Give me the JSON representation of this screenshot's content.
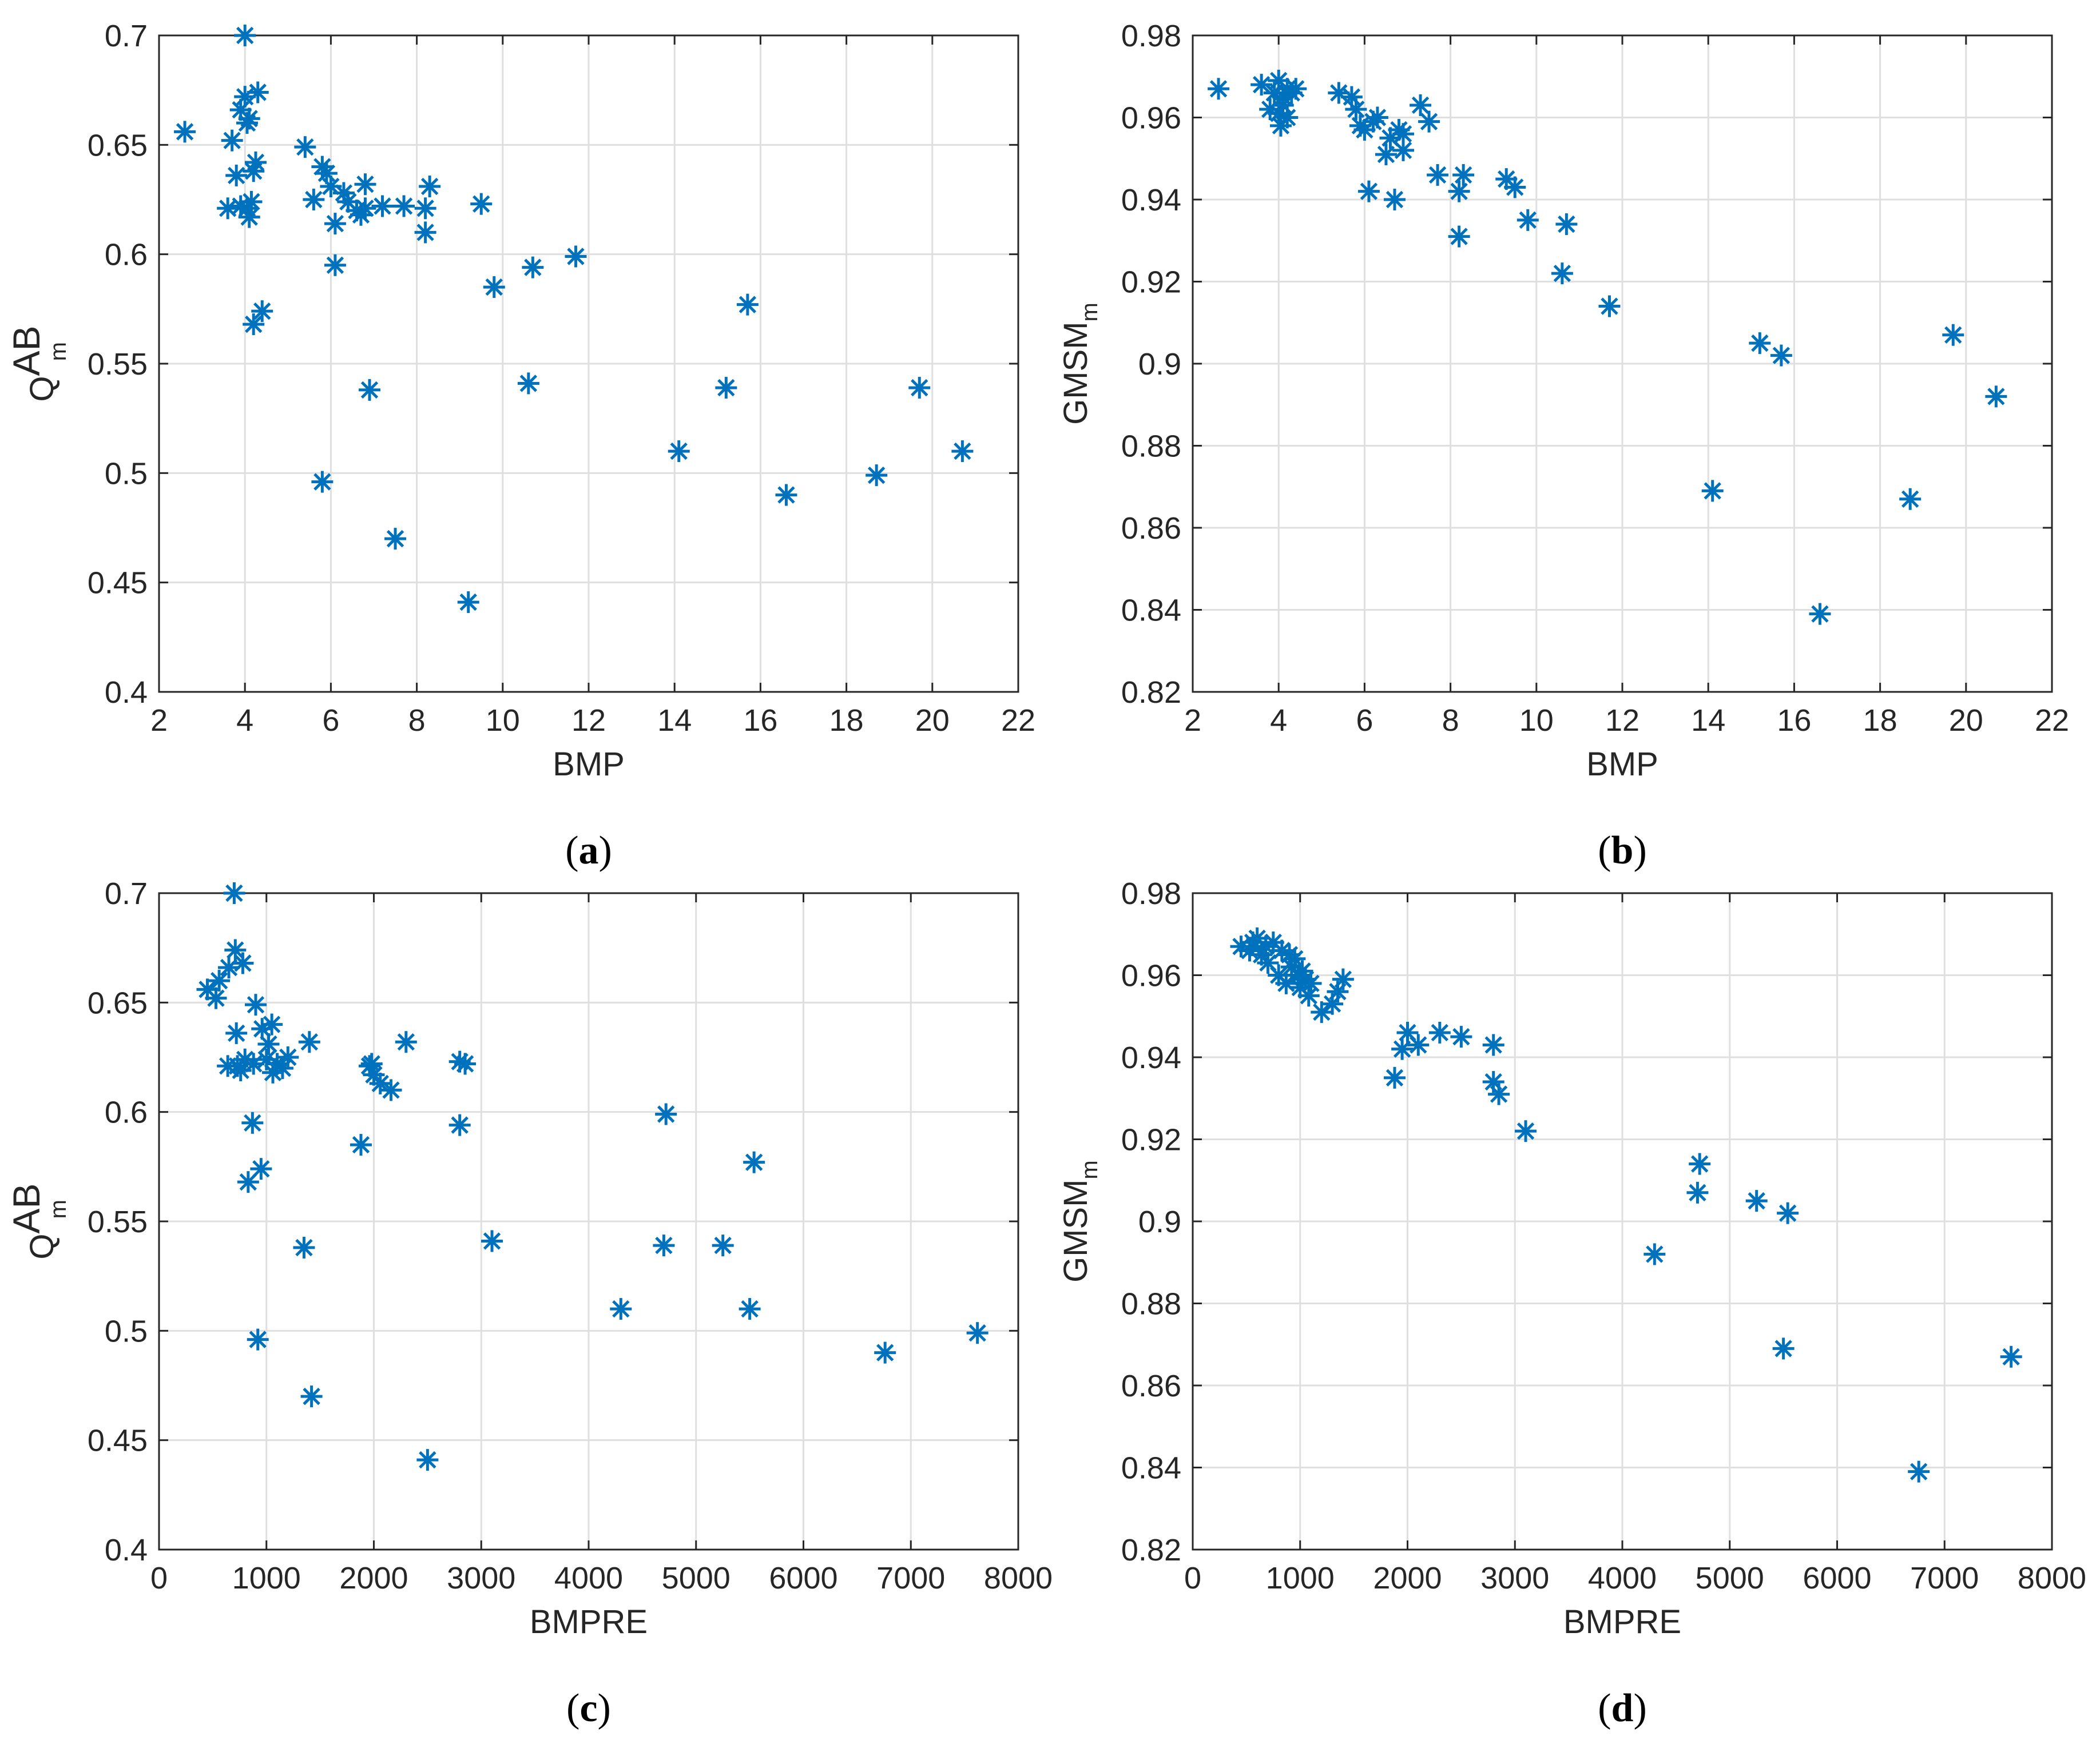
{
  "chart_data": [
    {
      "type": "scatter",
      "caption": "a",
      "xlabel": "BMP",
      "ylabel": {
        "main": "Q",
        "sup": "AB",
        "sub": "m"
      },
      "xlim": [
        2,
        22
      ],
      "ylim": [
        0.4,
        0.7
      ],
      "xticks": [
        2,
        4,
        6,
        8,
        10,
        12,
        14,
        16,
        18,
        20,
        22
      ],
      "yticks": [
        0.4,
        0.45,
        0.5,
        0.55,
        0.6,
        0.65,
        0.7
      ],
      "xtick_labels": [
        "2",
        "4",
        "6",
        "8",
        "10",
        "12",
        "14",
        "16",
        "18",
        "20",
        "22"
      ],
      "ytick_labels": [
        "0.4",
        "0.45",
        "0.5",
        "0.55",
        "0.6",
        "0.65",
        "0.7"
      ],
      "grid": true,
      "marker_color": "#0072BD",
      "points": [
        [
          2.6,
          0.656
        ],
        [
          3.6,
          0.621
        ],
        [
          3.7,
          0.652
        ],
        [
          3.8,
          0.636
        ],
        [
          3.9,
          0.622
        ],
        [
          3.9,
          0.666
        ],
        [
          4.0,
          0.7
        ],
        [
          4.0,
          0.672
        ],
        [
          4.05,
          0.66
        ],
        [
          4.05,
          0.621
        ],
        [
          4.1,
          0.617
        ],
        [
          4.1,
          0.662
        ],
        [
          4.15,
          0.624
        ],
        [
          4.2,
          0.638
        ],
        [
          4.2,
          0.568
        ],
        [
          4.25,
          0.642
        ],
        [
          4.3,
          0.674
        ],
        [
          4.4,
          0.574
        ],
        [
          5.4,
          0.649
        ],
        [
          5.6,
          0.625
        ],
        [
          5.8,
          0.64
        ],
        [
          5.8,
          0.496
        ],
        [
          5.9,
          0.637
        ],
        [
          6.0,
          0.631
        ],
        [
          6.1,
          0.614
        ],
        [
          6.1,
          0.595
        ],
        [
          6.3,
          0.628
        ],
        [
          6.4,
          0.624
        ],
        [
          6.6,
          0.62
        ],
        [
          6.7,
          0.618
        ],
        [
          6.8,
          0.621
        ],
        [
          6.8,
          0.632
        ],
        [
          6.9,
          0.538
        ],
        [
          7.2,
          0.622
        ],
        [
          7.5,
          0.47
        ],
        [
          7.7,
          0.622
        ],
        [
          8.2,
          0.61
        ],
        [
          8.2,
          0.621
        ],
        [
          8.3,
          0.631
        ],
        [
          9.2,
          0.441
        ],
        [
          9.5,
          0.623
        ],
        [
          9.8,
          0.585
        ],
        [
          10.6,
          0.541
        ],
        [
          10.7,
          0.594
        ],
        [
          11.7,
          0.599
        ],
        [
          14.1,
          0.51
        ],
        [
          15.2,
          0.539
        ],
        [
          15.7,
          0.577
        ],
        [
          16.6,
          0.49
        ],
        [
          18.7,
          0.499
        ],
        [
          19.7,
          0.539
        ],
        [
          20.7,
          0.51
        ]
      ]
    },
    {
      "type": "scatter",
      "caption": "b",
      "xlabel": "BMP",
      "ylabel": {
        "main": "GMSM",
        "sub": "m"
      },
      "xlim": [
        2,
        22
      ],
      "ylim": [
        0.82,
        0.98
      ],
      "xticks": [
        2,
        4,
        6,
        8,
        10,
        12,
        14,
        16,
        18,
        20,
        22
      ],
      "yticks": [
        0.82,
        0.84,
        0.86,
        0.88,
        0.9,
        0.92,
        0.94,
        0.96,
        0.98
      ],
      "xtick_labels": [
        "2",
        "4",
        "6",
        "8",
        "10",
        "12",
        "14",
        "16",
        "18",
        "20",
        "22"
      ],
      "ytick_labels": [
        "0.82",
        "0.84",
        "0.86",
        "0.88",
        "0.9",
        "0.92",
        "0.94",
        "0.96",
        "0.98"
      ],
      "grid": true,
      "marker_color": "#0072BD",
      "points": [
        [
          2.6,
          0.967
        ],
        [
          3.6,
          0.968
        ],
        [
          3.8,
          0.962
        ],
        [
          3.9,
          0.966
        ],
        [
          4.0,
          0.969
        ],
        [
          4.0,
          0.961
        ],
        [
          4.05,
          0.958
        ],
        [
          4.1,
          0.965
        ],
        [
          4.1,
          0.963
        ],
        [
          4.2,
          0.96
        ],
        [
          4.2,
          0.967
        ],
        [
          4.3,
          0.966
        ],
        [
          4.4,
          0.967
        ],
        [
          5.4,
          0.966
        ],
        [
          5.7,
          0.965
        ],
        [
          5.8,
          0.962
        ],
        [
          5.9,
          0.958
        ],
        [
          6.0,
          0.957
        ],
        [
          6.1,
          0.942
        ],
        [
          6.2,
          0.959
        ],
        [
          6.3,
          0.96
        ],
        [
          6.5,
          0.951
        ],
        [
          6.6,
          0.955
        ],
        [
          6.7,
          0.94
        ],
        [
          6.8,
          0.957
        ],
        [
          6.9,
          0.952
        ],
        [
          6.9,
          0.956
        ],
        [
          7.3,
          0.963
        ],
        [
          7.5,
          0.959
        ],
        [
          7.7,
          0.946
        ],
        [
          8.2,
          0.942
        ],
        [
          8.3,
          0.946
        ],
        [
          8.2,
          0.931
        ],
        [
          9.3,
          0.945
        ],
        [
          9.5,
          0.943
        ],
        [
          9.8,
          0.935
        ],
        [
          10.6,
          0.922
        ],
        [
          10.7,
          0.934
        ],
        [
          11.7,
          0.914
        ],
        [
          14.1,
          0.869
        ],
        [
          15.2,
          0.905
        ],
        [
          15.7,
          0.902
        ],
        [
          16.6,
          0.839
        ],
        [
          18.7,
          0.867
        ],
        [
          19.7,
          0.907
        ],
        [
          20.7,
          0.892
        ]
      ]
    },
    {
      "type": "scatter",
      "caption": "c",
      "xlabel": "BMPRE",
      "ylabel": {
        "main": "Q",
        "sup": "AB",
        "sub": "m"
      },
      "xlim": [
        0,
        8000
      ],
      "ylim": [
        0.4,
        0.7
      ],
      "xticks": [
        0,
        1000,
        2000,
        3000,
        4000,
        5000,
        6000,
        7000,
        8000
      ],
      "yticks": [
        0.4,
        0.45,
        0.5,
        0.55,
        0.6,
        0.65,
        0.7
      ],
      "xtick_labels": [
        "0",
        "1000",
        "2000",
        "3000",
        "4000",
        "5000",
        "6000",
        "7000",
        "8000"
      ],
      "ytick_labels": [
        "0.4",
        "0.45",
        "0.5",
        "0.55",
        "0.6",
        "0.65",
        "0.7"
      ],
      "grid": true,
      "marker_color": "#0072BD",
      "points": [
        [
          450,
          0.656
        ],
        [
          530,
          0.652
        ],
        [
          560,
          0.66
        ],
        [
          640,
          0.621
        ],
        [
          650,
          0.666
        ],
        [
          700,
          0.7
        ],
        [
          710,
          0.674
        ],
        [
          720,
          0.636
        ],
        [
          730,
          0.621
        ],
        [
          760,
          0.619
        ],
        [
          780,
          0.668
        ],
        [
          800,
          0.624
        ],
        [
          830,
          0.568
        ],
        [
          870,
          0.595
        ],
        [
          880,
          0.622
        ],
        [
          900,
          0.649
        ],
        [
          920,
          0.496
        ],
        [
          950,
          0.574
        ],
        [
          960,
          0.638
        ],
        [
          1000,
          0.624
        ],
        [
          1020,
          0.631
        ],
        [
          1050,
          0.64
        ],
        [
          1060,
          0.618
        ],
        [
          1100,
          0.622
        ],
        [
          1150,
          0.62
        ],
        [
          1200,
          0.625
        ],
        [
          1350,
          0.538
        ],
        [
          1400,
          0.632
        ],
        [
          1420,
          0.47
        ],
        [
          1880,
          0.585
        ],
        [
          1960,
          0.621
        ],
        [
          1980,
          0.622
        ],
        [
          2000,
          0.617
        ],
        [
          2060,
          0.613
        ],
        [
          2160,
          0.61
        ],
        [
          2300,
          0.632
        ],
        [
          2500,
          0.441
        ],
        [
          2800,
          0.594
        ],
        [
          2800,
          0.623
        ],
        [
          2850,
          0.622
        ],
        [
          3100,
          0.541
        ],
        [
          4300,
          0.51
        ],
        [
          4700,
          0.539
        ],
        [
          4720,
          0.599
        ],
        [
          5250,
          0.539
        ],
        [
          5500,
          0.51
        ],
        [
          5540,
          0.577
        ],
        [
          6760,
          0.49
        ],
        [
          7620,
          0.499
        ]
      ]
    },
    {
      "type": "scatter",
      "caption": "d",
      "xlabel": "BMPRE",
      "ylabel": {
        "main": "GMSM",
        "sub": "m"
      },
      "xlim": [
        0,
        8000
      ],
      "ylim": [
        0.82,
        0.98
      ],
      "xticks": [
        0,
        1000,
        2000,
        3000,
        4000,
        5000,
        6000,
        7000,
        8000
      ],
      "yticks": [
        0.82,
        0.84,
        0.86,
        0.88,
        0.9,
        0.92,
        0.94,
        0.96,
        0.98
      ],
      "xtick_labels": [
        "0",
        "1000",
        "2000",
        "3000",
        "4000",
        "5000",
        "6000",
        "7000",
        "8000"
      ],
      "ytick_labels": [
        "0.82",
        "0.84",
        "0.86",
        "0.88",
        "0.9",
        "0.92",
        "0.94",
        "0.96",
        "0.98"
      ],
      "grid": true,
      "marker_color": "#0072BD",
      "points": [
        [
          450,
          0.967
        ],
        [
          530,
          0.966
        ],
        [
          560,
          0.968
        ],
        [
          600,
          0.969
        ],
        [
          640,
          0.965
        ],
        [
          680,
          0.967
        ],
        [
          700,
          0.963
        ],
        [
          750,
          0.968
        ],
        [
          800,
          0.96
        ],
        [
          830,
          0.966
        ],
        [
          870,
          0.958
        ],
        [
          900,
          0.965
        ],
        [
          920,
          0.962
        ],
        [
          950,
          0.964
        ],
        [
          980,
          0.96
        ],
        [
          1000,
          0.957
        ],
        [
          1020,
          0.961
        ],
        [
          1050,
          0.959
        ],
        [
          1080,
          0.955
        ],
        [
          1100,
          0.958
        ],
        [
          1200,
          0.951
        ],
        [
          1300,
          0.953
        ],
        [
          1350,
          0.956
        ],
        [
          1400,
          0.959
        ],
        [
          1880,
          0.935
        ],
        [
          1950,
          0.942
        ],
        [
          2000,
          0.946
        ],
        [
          2100,
          0.943
        ],
        [
          2300,
          0.946
        ],
        [
          2500,
          0.945
        ],
        [
          2800,
          0.943
        ],
        [
          2800,
          0.934
        ],
        [
          2850,
          0.931
        ],
        [
          3100,
          0.922
        ],
        [
          4300,
          0.892
        ],
        [
          4700,
          0.907
        ],
        [
          4720,
          0.914
        ],
        [
          5250,
          0.905
        ],
        [
          5500,
          0.869
        ],
        [
          5540,
          0.902
        ],
        [
          6760,
          0.839
        ],
        [
          7620,
          0.867
        ]
      ]
    }
  ]
}
